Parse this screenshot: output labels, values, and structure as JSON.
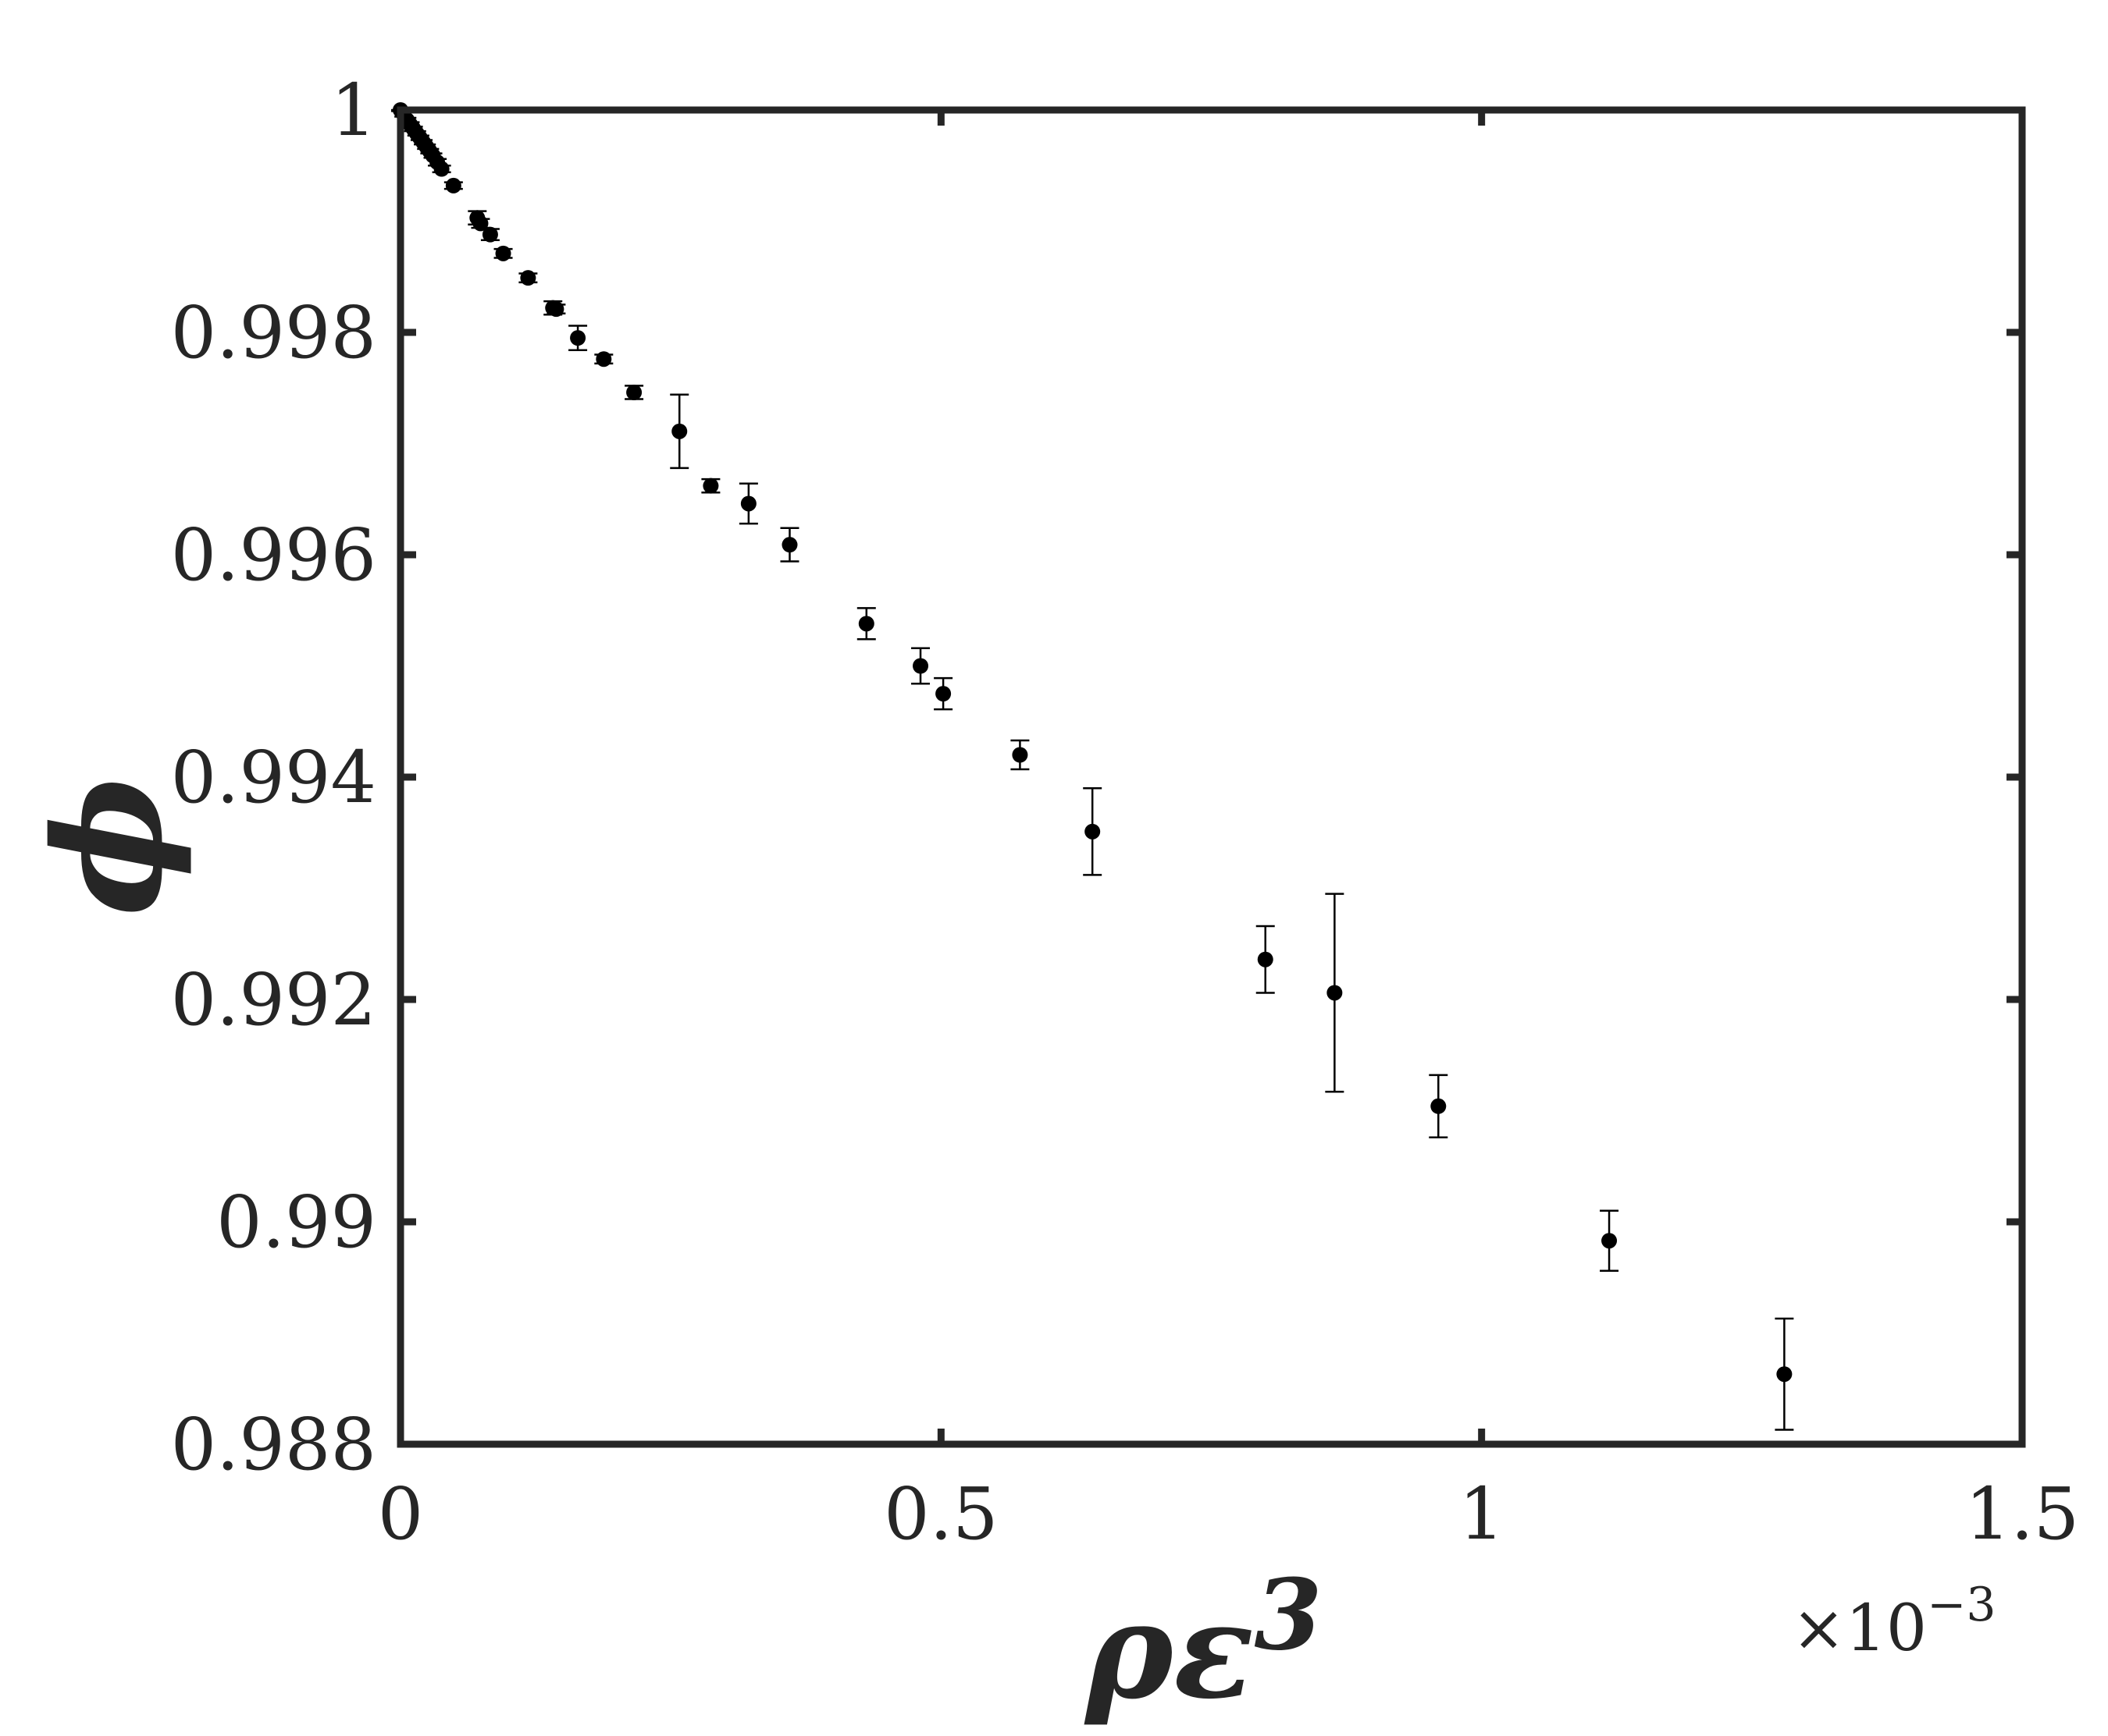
{
  "chart_data": {
    "type": "scatter",
    "title": "",
    "xlabel": "ρε",
    "xlabel_superscript": "3",
    "ylabel": "ϕ",
    "x_exponent_base": "×10",
    "x_exponent_power": "−3",
    "xlim": [
      0,
      1.5
    ],
    "ylim": [
      0.988,
      1.0
    ],
    "xticks": [
      0,
      0.5,
      1,
      1.5
    ],
    "xtick_labels": [
      "0",
      "0.5",
      "1",
      "1.5"
    ],
    "yticks": [
      0.988,
      0.99,
      0.992,
      0.994,
      0.996,
      0.998,
      1.0
    ],
    "ytick_labels": [
      "0.988",
      "0.99",
      "0.992",
      "0.994",
      "0.996",
      "0.998",
      "1"
    ],
    "grid": false,
    "legend": "none",
    "marker_color": "#000000",
    "axis_color": "#262626",
    "series": [
      {
        "points": [
          {
            "x": 0.0,
            "y": 1.0,
            "err": 1e-05
          },
          {
            "x": 0.003,
            "y": 0.99996,
            "err": 2e-05
          },
          {
            "x": 0.006,
            "y": 0.99991,
            "err": 2e-05
          },
          {
            "x": 0.009,
            "y": 0.99987,
            "err": 2e-05
          },
          {
            "x": 0.012,
            "y": 0.99983,
            "err": 2e-05
          },
          {
            "x": 0.015,
            "y": 0.99979,
            "err": 2e-05
          },
          {
            "x": 0.018,
            "y": 0.99975,
            "err": 2e-05
          },
          {
            "x": 0.021,
            "y": 0.99971,
            "err": 2e-05
          },
          {
            "x": 0.024,
            "y": 0.99967,
            "err": 2e-05
          },
          {
            "x": 0.027,
            "y": 0.99963,
            "err": 2e-05
          },
          {
            "x": 0.03,
            "y": 0.99959,
            "err": 2e-05
          },
          {
            "x": 0.034,
            "y": 0.99953,
            "err": 3e-05
          },
          {
            "x": 0.038,
            "y": 0.99947,
            "err": 3e-05
          },
          {
            "x": 0.049,
            "y": 0.99932,
            "err": 3e-05
          },
          {
            "x": 0.071,
            "y": 0.99903,
            "err": 6e-05
          },
          {
            "x": 0.074,
            "y": 0.99898,
            "err": 4e-05
          },
          {
            "x": 0.083,
            "y": 0.99888,
            "err": 5e-05
          },
          {
            "x": 0.095,
            "y": 0.99871,
            "err": 4e-05
          },
          {
            "x": 0.118,
            "y": 0.99849,
            "err": 4e-05
          },
          {
            "x": 0.141,
            "y": 0.99822,
            "err": 6e-05
          },
          {
            "x": 0.144,
            "y": 0.99821,
            "err": 4e-05
          },
          {
            "x": 0.164,
            "y": 0.99795,
            "err": 0.00011
          },
          {
            "x": 0.188,
            "y": 0.99776,
            "err": 4e-05
          },
          {
            "x": 0.216,
            "y": 0.99746,
            "err": 6e-05
          },
          {
            "x": 0.258,
            "y": 0.99711,
            "err": 0.00033
          },
          {
            "x": 0.287,
            "y": 0.99662,
            "err": 6e-05
          },
          {
            "x": 0.322,
            "y": 0.99646,
            "err": 0.00018
          },
          {
            "x": 0.36,
            "y": 0.99609,
            "err": 0.00015
          },
          {
            "x": 0.431,
            "y": 0.99538,
            "err": 0.00014
          },
          {
            "x": 0.481,
            "y": 0.995,
            "err": 0.00016
          },
          {
            "x": 0.502,
            "y": 0.99475,
            "err": 0.00014
          },
          {
            "x": 0.573,
            "y": 0.9942,
            "err": 0.00013
          },
          {
            "x": 0.64,
            "y": 0.99351,
            "err": 0.00039
          },
          {
            "x": 0.8,
            "y": 0.99236,
            "err": 0.0003
          },
          {
            "x": 0.864,
            "y": 0.99206,
            "err": 0.00089
          },
          {
            "x": 0.96,
            "y": 0.99104,
            "err": 0.00028
          },
          {
            "x": 1.118,
            "y": 0.98983,
            "err": 0.00027
          },
          {
            "x": 1.28,
            "y": 0.98863,
            "err": 0.0005
          }
        ]
      }
    ]
  }
}
